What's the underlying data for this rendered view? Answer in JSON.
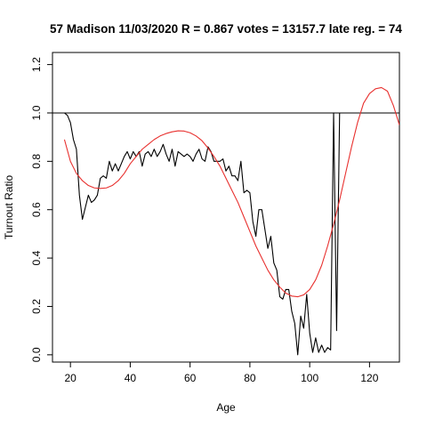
{
  "chart_data": {
    "type": "line",
    "title": "57 Madison 11/03/2020 R = 0.867 votes = 13157.7 late reg. = 74",
    "xlabel": "Age",
    "ylabel": "Turnout Ratio",
    "xlim": [
      14,
      130
    ],
    "ylim": [
      -0.03,
      1.25
    ],
    "x_ticks": [
      20,
      40,
      60,
      80,
      100,
      120
    ],
    "y_ticks": [
      0.0,
      0.2,
      0.4,
      0.6,
      0.8,
      1.0,
      1.2
    ],
    "x_tick_labels": [
      "20",
      "40",
      "60",
      "80",
      "100",
      "120"
    ],
    "y_tick_labels": [
      "0.0",
      "0.2",
      "0.4",
      "0.6",
      "0.8",
      "1.0",
      "1.2"
    ],
    "reference_line": {
      "y": 1.0,
      "color": "#000000"
    },
    "grid": false,
    "series": [
      {
        "style": "observed",
        "color": "#000000",
        "points": [
          [
            18,
            1.0
          ],
          [
            19,
            0.99
          ],
          [
            20,
            0.96
          ],
          [
            21,
            0.89
          ],
          [
            22,
            0.85
          ],
          [
            23,
            0.66
          ],
          [
            24,
            0.56
          ],
          [
            25,
            0.61
          ],
          [
            26,
            0.66
          ],
          [
            27,
            0.63
          ],
          [
            28,
            0.64
          ],
          [
            29,
            0.66
          ],
          [
            30,
            0.73
          ],
          [
            31,
            0.74
          ],
          [
            32,
            0.73
          ],
          [
            33,
            0.8
          ],
          [
            34,
            0.76
          ],
          [
            35,
            0.79
          ],
          [
            36,
            0.76
          ],
          [
            37,
            0.79
          ],
          [
            38,
            0.82
          ],
          [
            39,
            0.84
          ],
          [
            40,
            0.81
          ],
          [
            41,
            0.84
          ],
          [
            42,
            0.82
          ],
          [
            43,
            0.84
          ],
          [
            44,
            0.78
          ],
          [
            45,
            0.83
          ],
          [
            46,
            0.84
          ],
          [
            47,
            0.82
          ],
          [
            48,
            0.85
          ],
          [
            49,
            0.82
          ],
          [
            50,
            0.84
          ],
          [
            51,
            0.87
          ],
          [
            52,
            0.83
          ],
          [
            53,
            0.8
          ],
          [
            54,
            0.85
          ],
          [
            55,
            0.78
          ],
          [
            56,
            0.84
          ],
          [
            57,
            0.83
          ],
          [
            58,
            0.82
          ],
          [
            59,
            0.83
          ],
          [
            60,
            0.82
          ],
          [
            61,
            0.8
          ],
          [
            62,
            0.83
          ],
          [
            63,
            0.85
          ],
          [
            64,
            0.81
          ],
          [
            65,
            0.8
          ],
          [
            66,
            0.86
          ],
          [
            67,
            0.84
          ],
          [
            68,
            0.8
          ],
          [
            69,
            0.8
          ],
          [
            70,
            0.8
          ],
          [
            71,
            0.81
          ],
          [
            72,
            0.76
          ],
          [
            73,
            0.78
          ],
          [
            74,
            0.74
          ],
          [
            75,
            0.74
          ],
          [
            76,
            0.72
          ],
          [
            77,
            0.8
          ],
          [
            78,
            0.67
          ],
          [
            79,
            0.68
          ],
          [
            80,
            0.67
          ],
          [
            81,
            0.55
          ],
          [
            82,
            0.49
          ],
          [
            83,
            0.6
          ],
          [
            84,
            0.6
          ],
          [
            85,
            0.52
          ],
          [
            86,
            0.44
          ],
          [
            87,
            0.49
          ],
          [
            88,
            0.38
          ],
          [
            89,
            0.35
          ],
          [
            90,
            0.24
          ],
          [
            91,
            0.23
          ],
          [
            92,
            0.27
          ],
          [
            93,
            0.27
          ],
          [
            94,
            0.18
          ],
          [
            95,
            0.13
          ],
          [
            96,
            0.0
          ],
          [
            97,
            0.16
          ],
          [
            98,
            0.11
          ],
          [
            99,
            0.25
          ],
          [
            100,
            0.09
          ],
          [
            101,
            0.01
          ],
          [
            102,
            0.07
          ],
          [
            103,
            0.01
          ],
          [
            104,
            0.04
          ],
          [
            105,
            0.01
          ],
          [
            106,
            0.03
          ],
          [
            107,
            0.02
          ],
          [
            108,
            1.0
          ],
          [
            109,
            0.1
          ],
          [
            110,
            1.0
          ]
        ]
      },
      {
        "style": "fitted",
        "color": "#e8302e",
        "points": [
          [
            18,
            0.89
          ],
          [
            20,
            0.8
          ],
          [
            22,
            0.75
          ],
          [
            24,
            0.72
          ],
          [
            26,
            0.7
          ],
          [
            28,
            0.69
          ],
          [
            30,
            0.688
          ],
          [
            32,
            0.69
          ],
          [
            34,
            0.7
          ],
          [
            36,
            0.72
          ],
          [
            38,
            0.75
          ],
          [
            40,
            0.79
          ],
          [
            42,
            0.82
          ],
          [
            44,
            0.85
          ],
          [
            46,
            0.87
          ],
          [
            48,
            0.89
          ],
          [
            50,
            0.905
          ],
          [
            52,
            0.915
          ],
          [
            54,
            0.922
          ],
          [
            56,
            0.926
          ],
          [
            58,
            0.925
          ],
          [
            60,
            0.918
          ],
          [
            62,
            0.905
          ],
          [
            64,
            0.885
          ],
          [
            66,
            0.855
          ],
          [
            68,
            0.82
          ],
          [
            70,
            0.78
          ],
          [
            72,
            0.73
          ],
          [
            74,
            0.68
          ],
          [
            76,
            0.63
          ],
          [
            78,
            0.57
          ],
          [
            80,
            0.51
          ],
          [
            82,
            0.45
          ],
          [
            84,
            0.4
          ],
          [
            86,
            0.35
          ],
          [
            88,
            0.31
          ],
          [
            90,
            0.28
          ],
          [
            92,
            0.255
          ],
          [
            94,
            0.243
          ],
          [
            96,
            0.24
          ],
          [
            98,
            0.248
          ],
          [
            100,
            0.27
          ],
          [
            102,
            0.31
          ],
          [
            104,
            0.37
          ],
          [
            106,
            0.45
          ],
          [
            108,
            0.54
          ],
          [
            110,
            0.64
          ],
          [
            112,
            0.75
          ],
          [
            114,
            0.86
          ],
          [
            116,
            0.96
          ],
          [
            118,
            1.04
          ],
          [
            120,
            1.08
          ],
          [
            122,
            1.1
          ],
          [
            124,
            1.105
          ],
          [
            126,
            1.09
          ],
          [
            128,
            1.03
          ],
          [
            130,
            0.95
          ]
        ]
      }
    ]
  }
}
